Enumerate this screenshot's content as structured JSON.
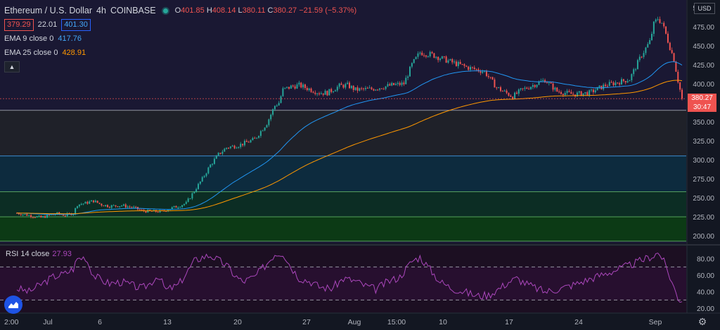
{
  "header": {
    "symbol": "Ethereum / U.S. Dollar",
    "interval": "4h",
    "exchange": "COINBASE",
    "o_label": "O",
    "o_value": "401.85",
    "h_label": "H",
    "h_value": "408.14",
    "l_label": "L",
    "l_value": "380.11",
    "c_label": "C",
    "c_value": "380.27",
    "change": "−21.59 (−5.37%)",
    "bid": "379.29",
    "spread": "22.01",
    "ask": "401.30"
  },
  "indicators": {
    "ema9_label": "EMA 9 close 0",
    "ema9_value": "417.76",
    "ema25_label": "EMA 25 close 0",
    "ema25_value": "428.91",
    "rsi_label": "RSI 14 close",
    "rsi_value": "27.93"
  },
  "price_axis": {
    "currency_button": "USD",
    "labels": [
      "500.00",
      "475.00",
      "450.00",
      "425.00",
      "400.00",
      "375.00",
      "350.00",
      "325.00",
      "300.00",
      "275.00",
      "250.00",
      "225.00",
      "200.00"
    ],
    "last_price": "380.27",
    "countdown": "30:47"
  },
  "rsi_axis": {
    "labels": [
      "80.00",
      "60.00",
      "40.00",
      "20.00"
    ]
  },
  "time_axis": [
    "2:00",
    "Jul",
    "6",
    "13",
    "20",
    "27",
    "Aug",
    "15:00",
    "10",
    "17",
    "24",
    "Sep"
  ],
  "colors": {
    "up": "#26a69a",
    "down": "#ef5350",
    "ema_fast": "#2196f3",
    "ema_slow": "#ff9800",
    "rsi": "#ab47bc",
    "background": "#131722"
  },
  "chart_data": {
    "type": "candlestick",
    "y_range": [
      190,
      510
    ],
    "support_resistance_lines": [
      365,
      305,
      258,
      225,
      193
    ],
    "zones": [
      {
        "from": 305,
        "to": 365,
        "color": "#1f2129"
      },
      {
        "from": 258,
        "to": 305,
        "color": "#0d2b3e"
      },
      {
        "from": 225,
        "to": 258,
        "color": "#0c2d24"
      },
      {
        "from": 193,
        "to": 225,
        "color": "#0c3a15"
      }
    ],
    "price_path": [
      [
        0,
        230
      ],
      [
        4,
        228
      ],
      [
        8,
        226
      ],
      [
        12,
        224
      ],
      [
        16,
        227
      ],
      [
        20,
        229
      ],
      [
        24,
        227
      ],
      [
        28,
        230
      ],
      [
        30,
        241
      ],
      [
        34,
        243
      ],
      [
        38,
        246
      ],
      [
        42,
        241
      ],
      [
        46,
        239
      ],
      [
        52,
        240
      ],
      [
        58,
        237
      ],
      [
        62,
        233
      ],
      [
        66,
        232
      ],
      [
        72,
        232
      ],
      [
        76,
        236
      ],
      [
        80,
        239
      ],
      [
        84,
        243
      ],
      [
        88,
        259
      ],
      [
        92,
        275
      ],
      [
        96,
        293
      ],
      [
        100,
        307
      ],
      [
        104,
        316
      ],
      [
        110,
        319
      ],
      [
        118,
        327
      ],
      [
        124,
        348
      ],
      [
        128,
        371
      ],
      [
        130,
        375
      ],
      [
        132,
        392
      ],
      [
        136,
        396
      ],
      [
        140,
        398
      ],
      [
        146,
        392
      ],
      [
        150,
        388
      ],
      [
        154,
        388
      ],
      [
        160,
        397
      ],
      [
        164,
        398
      ],
      [
        168,
        392
      ],
      [
        176,
        393
      ],
      [
        180,
        395
      ],
      [
        186,
        398
      ],
      [
        192,
        400
      ],
      [
        196,
        425
      ],
      [
        200,
        441
      ],
      [
        206,
        438
      ],
      [
        212,
        432
      ],
      [
        216,
        428
      ],
      [
        224,
        421
      ],
      [
        232,
        416
      ],
      [
        238,
        395
      ],
      [
        246,
        383
      ],
      [
        250,
        391
      ],
      [
        256,
        398
      ],
      [
        262,
        405
      ],
      [
        268,
        390
      ],
      [
        276,
        386
      ],
      [
        284,
        388
      ],
      [
        292,
        398
      ],
      [
        300,
        403
      ],
      [
        304,
        406
      ],
      [
        310,
        438
      ],
      [
        314,
        455
      ],
      [
        316,
        478
      ],
      [
        318,
        486
      ],
      [
        320,
        480
      ],
      [
        322,
        465
      ],
      [
        324,
        448
      ],
      [
        326,
        432
      ],
      [
        328,
        404
      ],
      [
        330,
        380
      ]
    ],
    "ema9_last": 417.76,
    "ema25_last": 428.91,
    "last_close": 380.27,
    "rsi": {
      "levels": [
        70,
        30
      ],
      "y_range": [
        15,
        95
      ],
      "path": [
        [
          0,
          44
        ],
        [
          6,
          40
        ],
        [
          12,
          49
        ],
        [
          18,
          58
        ],
        [
          24,
          62
        ],
        [
          28,
          68
        ],
        [
          30,
          80
        ],
        [
          34,
          82
        ],
        [
          38,
          60
        ],
        [
          42,
          54
        ],
        [
          46,
          50
        ],
        [
          52,
          52
        ],
        [
          58,
          47
        ],
        [
          62,
          44
        ],
        [
          66,
          50
        ],
        [
          70,
          60
        ],
        [
          74,
          42
        ],
        [
          80,
          48
        ],
        [
          84,
          62
        ],
        [
          88,
          77
        ],
        [
          92,
          82
        ],
        [
          96,
          84
        ],
        [
          100,
          78
        ],
        [
          104,
          72
        ],
        [
          108,
          60
        ],
        [
          112,
          52
        ],
        [
          118,
          58
        ],
        [
          124,
          74
        ],
        [
          128,
          86
        ],
        [
          132,
          87
        ],
        [
          136,
          70
        ],
        [
          140,
          57
        ],
        [
          146,
          52
        ],
        [
          150,
          46
        ],
        [
          156,
          44
        ],
        [
          162,
          56
        ],
        [
          168,
          53
        ],
        [
          172,
          48
        ],
        [
          178,
          43
        ],
        [
          184,
          52
        ],
        [
          190,
          58
        ],
        [
          196,
          77
        ],
        [
          200,
          82
        ],
        [
          204,
          70
        ],
        [
          210,
          52
        ],
        [
          216,
          44
        ],
        [
          222,
          40
        ],
        [
          228,
          35
        ],
        [
          234,
          36
        ],
        [
          240,
          45
        ],
        [
          244,
          52
        ],
        [
          248,
          56
        ],
        [
          254,
          48
        ],
        [
          262,
          40
        ],
        [
          270,
          44
        ],
        [
          278,
          50
        ],
        [
          286,
          57
        ],
        [
          292,
          62
        ],
        [
          298,
          67
        ],
        [
          304,
          72
        ],
        [
          308,
          76
        ],
        [
          312,
          80
        ],
        [
          316,
          84
        ],
        [
          318,
          87
        ],
        [
          320,
          82
        ],
        [
          322,
          70
        ],
        [
          324,
          58
        ],
        [
          326,
          45
        ],
        [
          328,
          33
        ],
        [
          330,
          28
        ]
      ]
    }
  }
}
